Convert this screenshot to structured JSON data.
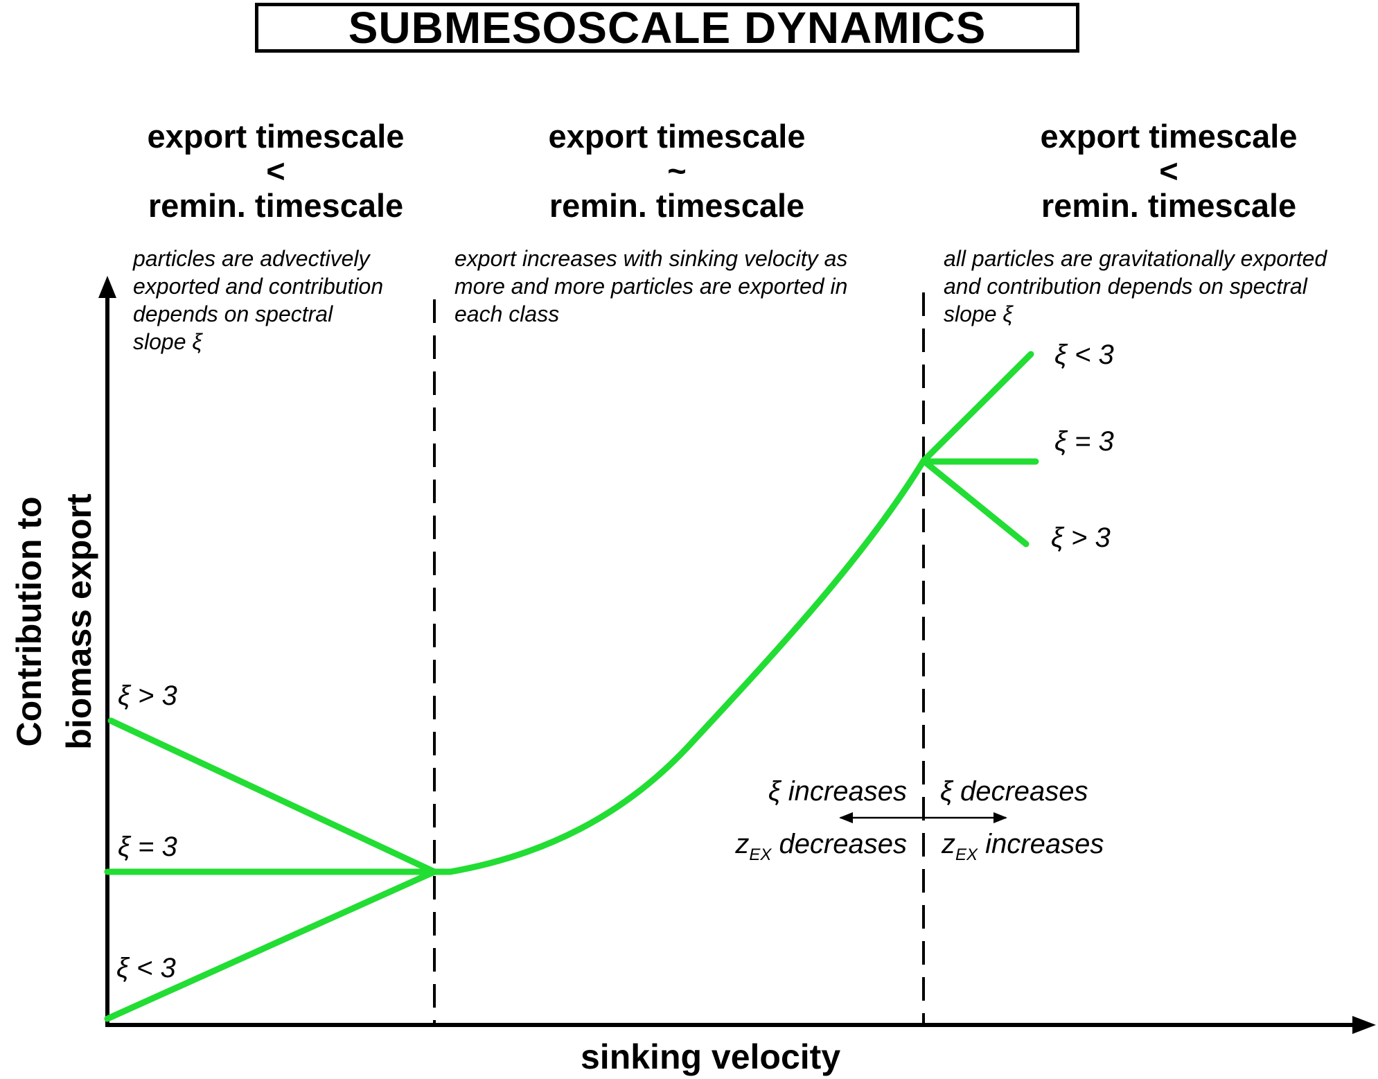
{
  "title": "SUBMESOSCALE DYNAMICS",
  "regimes": [
    {
      "header": [
        "export timescale",
        "<",
        "remin. timescale"
      ],
      "description": [
        "particles are advectively",
        "exported and contribution",
        "depends on spectral",
        "slope ξ"
      ]
    },
    {
      "header": [
        "export timescale",
        "~",
        "remin. timescale"
      ],
      "description": [
        "export increases with sinking velocity as",
        "more and more particles are exported in",
        "each class"
      ]
    },
    {
      "header": [
        "export timescale",
        "<",
        "remin. timescale"
      ],
      "description": [
        "all particles are gravitationally exported",
        "and contribution depends on spectral",
        "slope ξ"
      ]
    }
  ],
  "axes": {
    "x_label": "sinking velocity",
    "y_label_line1": "Contribution to",
    "y_label_line2": "biomass export"
  },
  "curve_labels": {
    "left_top": "ξ > 3",
    "left_mid": "ξ = 3",
    "left_bottom": "ξ < 3",
    "right_top": "ξ < 3",
    "right_mid": "ξ = 3",
    "right_bottom": "ξ > 3"
  },
  "annotations": {
    "xi_increases": "ξ increases",
    "xi_decreases": "ξ decreases",
    "z_symbol": "z",
    "z_subscript": "EX",
    "z_left_text": " decreases",
    "z_right_text": " increases"
  },
  "colors": {
    "curve": "#22dd33",
    "axis": "#000000",
    "divider": "#000000"
  }
}
